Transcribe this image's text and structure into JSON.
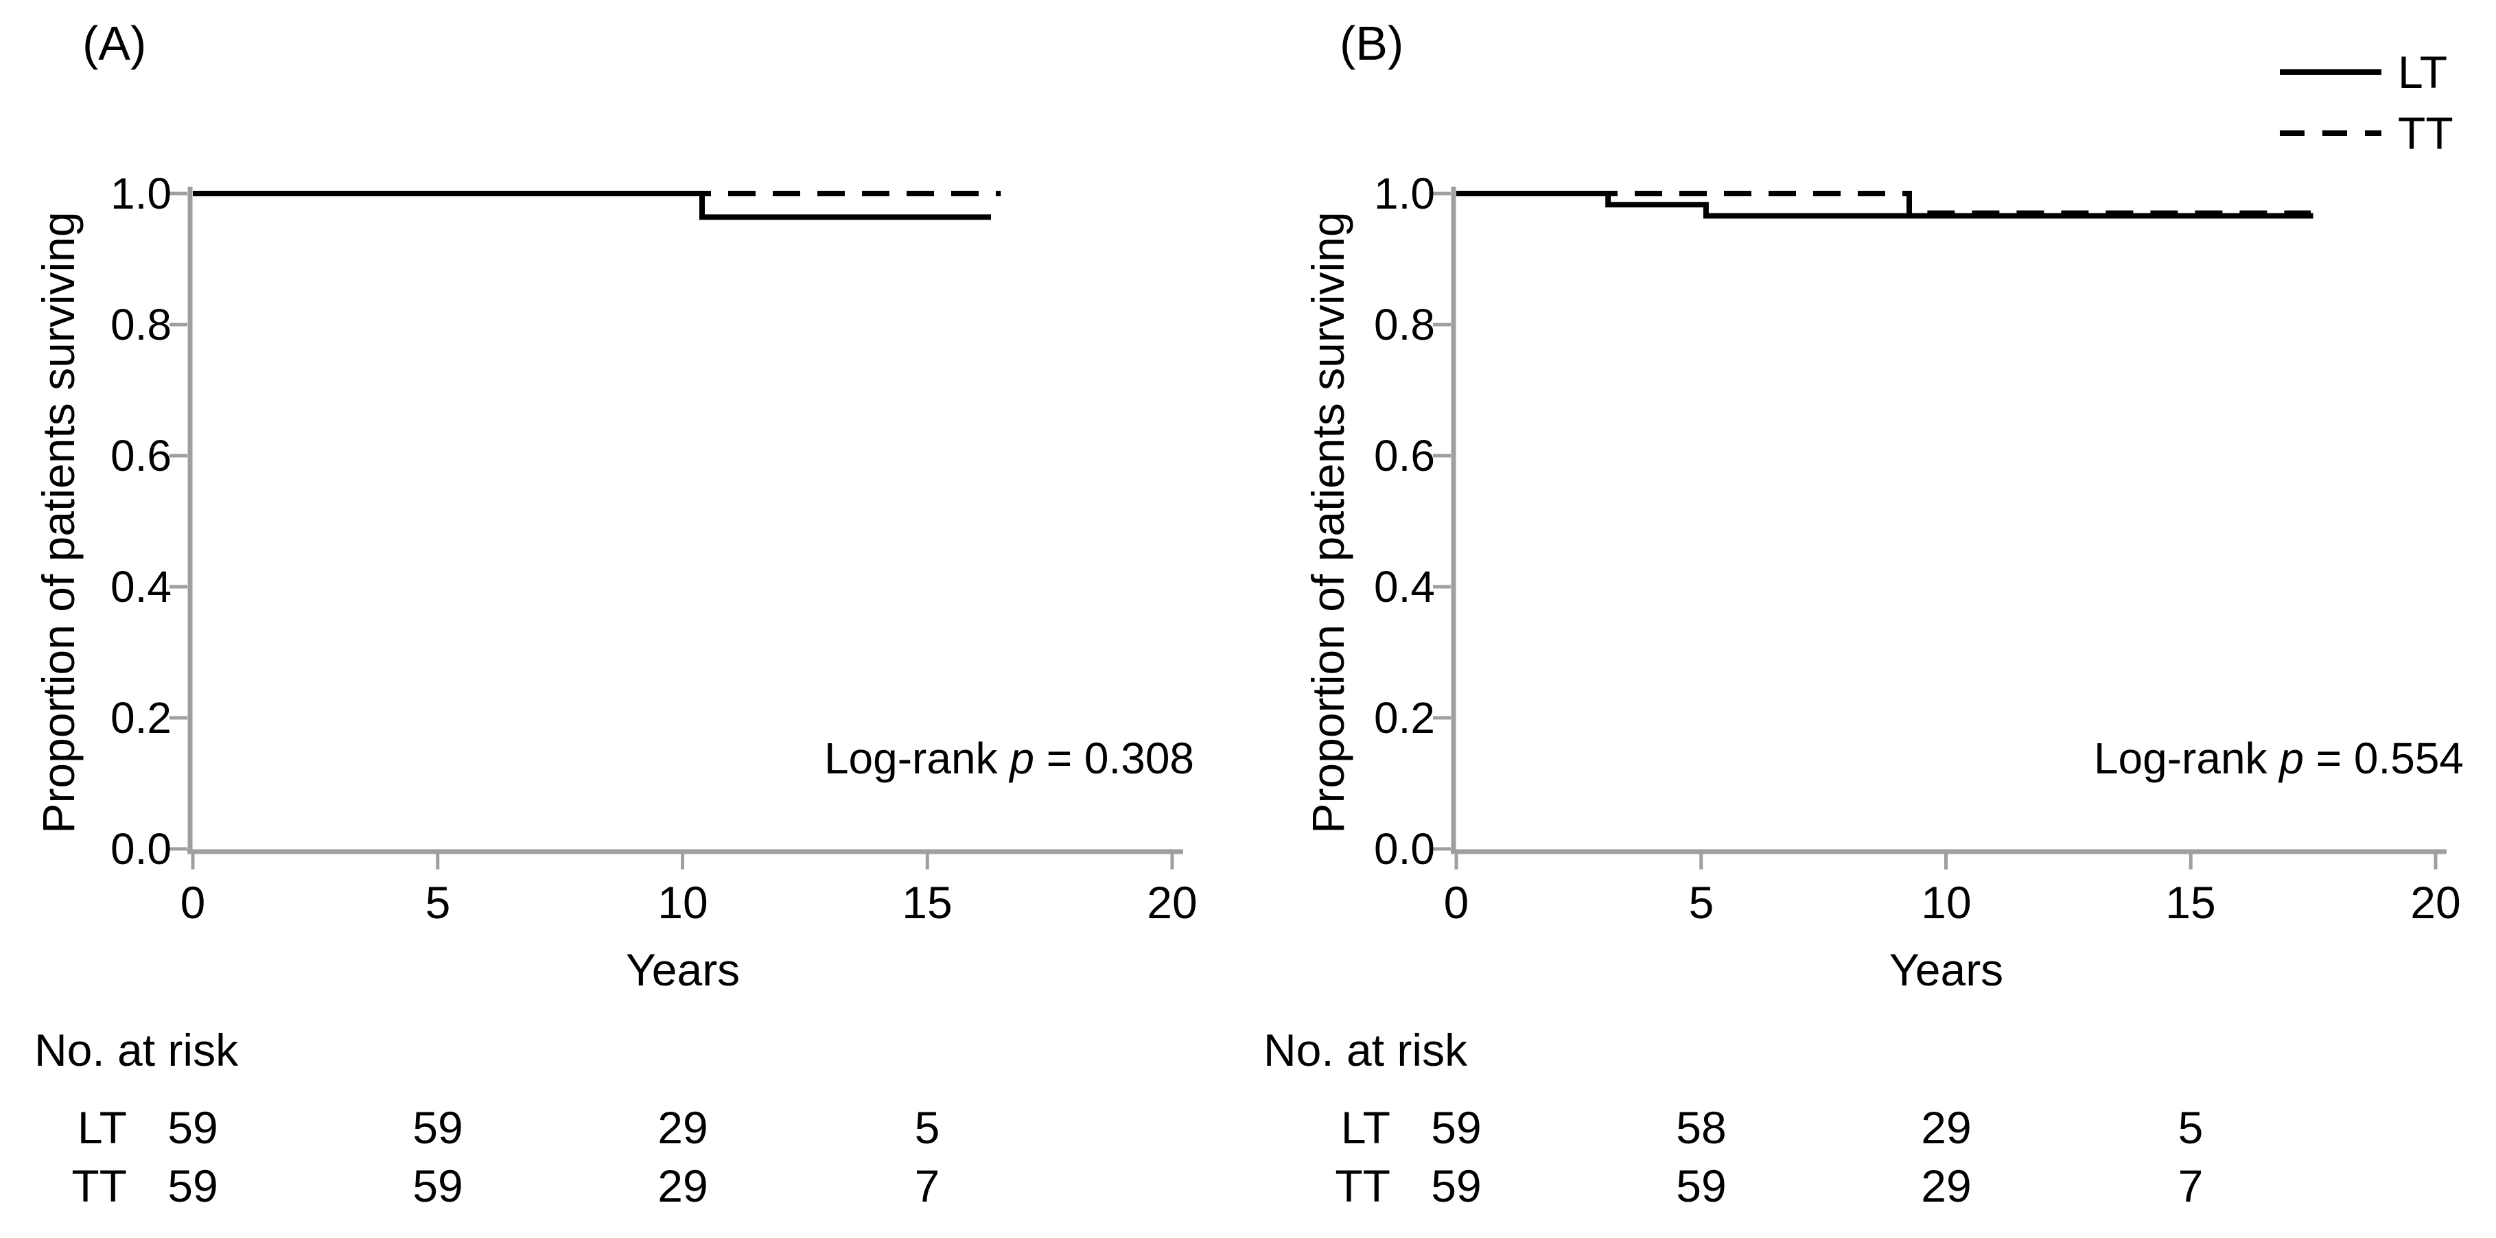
{
  "figure": {
    "background_color": "#ffffff",
    "text_color": "#000000",
    "axis_color": "#9f9f9f",
    "curve_color": "#000000"
  },
  "legend": {
    "items": [
      {
        "label": "LT",
        "line_style": "solid"
      },
      {
        "label": "TT",
        "line_style": "dashed"
      }
    ]
  },
  "chart_data": [
    {
      "type": "line",
      "subtype": "kaplan-meier-step",
      "panel_label": "(A)",
      "xlabel": "Years",
      "ylabel": "Proportion of patients surviving",
      "xlim": [
        0,
        20
      ],
      "ylim": [
        0.0,
        1.0
      ],
      "xticks": [
        "0",
        "5",
        "10",
        "15",
        "20"
      ],
      "yticks": [
        "1.0",
        "0.8",
        "0.6",
        "0.4",
        "0.2",
        "0.0"
      ],
      "grid": false,
      "legend_position": "top-right-of-figure",
      "annotation": {
        "prefix": "Log-rank ",
        "italic": "p",
        "suffix": " = 0.308"
      },
      "p_value": "0.308",
      "series": [
        {
          "name": "LT",
          "style": "solid",
          "steps": [
            [
              0,
              1.0
            ],
            [
              10.4,
              1.0
            ],
            [
              10.4,
              0.964
            ],
            [
              16.3,
              0.964
            ]
          ]
        },
        {
          "name": "TT",
          "style": "dashed",
          "steps": [
            [
              0,
              1.0
            ],
            [
              16.5,
              1.0
            ]
          ]
        }
      ],
      "at_risk": {
        "title": "No. at risk",
        "times": [
          0,
          5,
          10,
          15
        ],
        "rows": [
          {
            "label": "LT",
            "values": [
              "59",
              "59",
              "29",
              "5"
            ]
          },
          {
            "label": "TT",
            "values": [
              "59",
              "59",
              "29",
              "7"
            ]
          }
        ]
      }
    },
    {
      "type": "line",
      "subtype": "kaplan-meier-step",
      "panel_label": "(B)",
      "xlabel": "Years",
      "ylabel": "Proportion of patients surviving",
      "xlim": [
        0,
        20
      ],
      "ylim": [
        0.0,
        1.0
      ],
      "xticks": [
        "0",
        "5",
        "10",
        "15",
        "20"
      ],
      "yticks": [
        "1.0",
        "0.8",
        "0.6",
        "0.4",
        "0.2",
        "0.0"
      ],
      "grid": false,
      "legend_position": "top-right-of-figure",
      "annotation": {
        "prefix": "Log-rank ",
        "italic": "p",
        "suffix": " = 0.554"
      },
      "p_value": "0.554",
      "series": [
        {
          "name": "LT",
          "style": "solid",
          "steps": [
            [
              0,
              1.0
            ],
            [
              3.1,
              1.0
            ],
            [
              3.1,
              0.983
            ],
            [
              5.1,
              0.983
            ],
            [
              5.1,
              0.966
            ],
            [
              17.5,
              0.966
            ]
          ]
        },
        {
          "name": "TT",
          "style": "dashed",
          "steps": [
            [
              0,
              1.0
            ],
            [
              9.25,
              1.0
            ],
            [
              9.25,
              0.97
            ],
            [
              17.45,
              0.97
            ]
          ]
        }
      ],
      "at_risk": {
        "title": "No. at risk",
        "times": [
          0,
          5,
          10,
          15
        ],
        "rows": [
          {
            "label": "LT",
            "values": [
              "59",
              "58",
              "29",
              "5"
            ]
          },
          {
            "label": "TT",
            "values": [
              "59",
              "59",
              "29",
              "7"
            ]
          }
        ]
      }
    }
  ]
}
